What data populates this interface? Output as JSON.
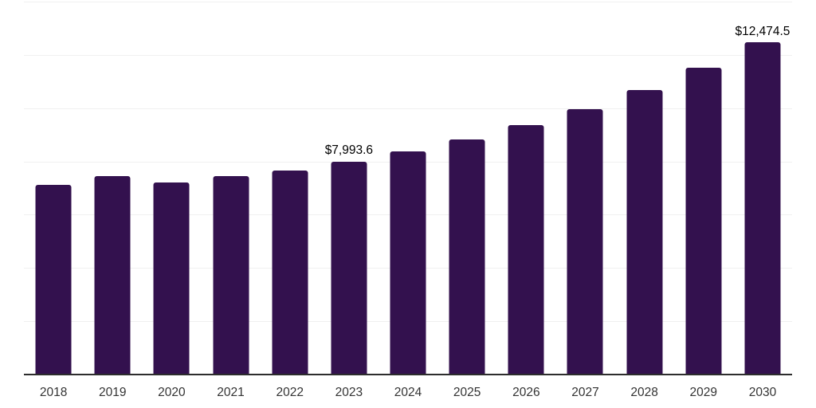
{
  "chart_data": {
    "type": "bar",
    "title": "",
    "xlabel": "",
    "ylabel": "",
    "categories": [
      "2018",
      "2019",
      "2020",
      "2021",
      "2022",
      "2023",
      "2024",
      "2025",
      "2026",
      "2027",
      "2028",
      "2029",
      "2030"
    ],
    "values": [
      7110,
      7440,
      7220,
      7460,
      7670,
      7993.6,
      8390,
      8840,
      9350,
      9960,
      10680,
      11530,
      12474.5
    ],
    "data_labels": [
      "",
      "",
      "",
      "",
      "",
      "$7,993.6",
      "",
      "",
      "",
      "",
      "",
      "",
      "$12,474.5"
    ],
    "ylim": [
      0,
      14000
    ],
    "gridline_step": 2000,
    "grid": "horizontal",
    "legend": "none",
    "y_tick_labels_visible": false,
    "colors": {
      "bar": "#33114E",
      "gridline": "#f0f0f0",
      "axis_line": "#2d2d2d",
      "value_label": "#000000",
      "tick_label": "#333333",
      "background": "#ffffff"
    }
  }
}
